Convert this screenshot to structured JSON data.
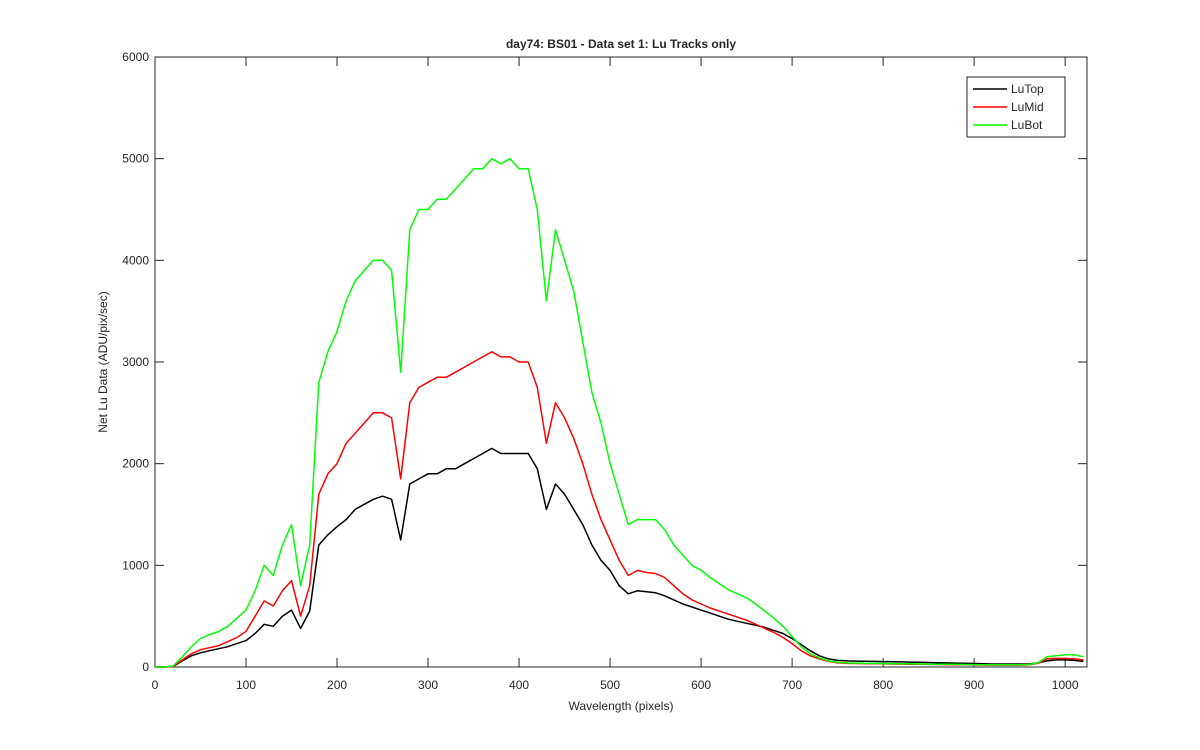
{
  "chart_data": {
    "type": "line",
    "title": "day74: BS01 - Data set 1: Lu Tracks only",
    "xlabel": "Wavelength (pixels)",
    "ylabel": "Net Lu Data (ADU/pix/sec)",
    "xlim": [
      0,
      1024
    ],
    "ylim": [
      0,
      6000
    ],
    "xticks": [
      0,
      100,
      200,
      300,
      400,
      500,
      600,
      700,
      800,
      900,
      1000
    ],
    "yticks": [
      0,
      1000,
      2000,
      3000,
      4000,
      5000,
      6000
    ],
    "legend": "northeast",
    "x": [
      0,
      10,
      20,
      30,
      40,
      50,
      60,
      70,
      80,
      90,
      100,
      110,
      120,
      130,
      140,
      150,
      160,
      170,
      180,
      190,
      200,
      210,
      220,
      230,
      240,
      250,
      260,
      270,
      280,
      290,
      300,
      310,
      320,
      330,
      340,
      350,
      360,
      370,
      380,
      390,
      400,
      410,
      420,
      430,
      440,
      450,
      460,
      470,
      480,
      490,
      500,
      510,
      520,
      530,
      540,
      550,
      560,
      570,
      580,
      590,
      600,
      610,
      620,
      630,
      640,
      650,
      660,
      670,
      680,
      690,
      700,
      710,
      720,
      730,
      740,
      750,
      760,
      770,
      780,
      790,
      800,
      810,
      820,
      830,
      840,
      850,
      860,
      870,
      880,
      890,
      900,
      910,
      920,
      930,
      940,
      950,
      960,
      970,
      980,
      990,
      1000,
      1010,
      1020
    ],
    "series": [
      {
        "name": "LuTop",
        "color": "#000000",
        "values": [
          0,
          0,
          5,
          60,
          110,
          140,
          160,
          180,
          200,
          230,
          260,
          330,
          420,
          400,
          500,
          560,
          380,
          550,
          1200,
          1300,
          1380,
          1450,
          1550,
          1600,
          1650,
          1680,
          1650,
          1250,
          1800,
          1850,
          1900,
          1900,
          1950,
          1950,
          2000,
          2050,
          2100,
          2150,
          2100,
          2100,
          2100,
          2100,
          1950,
          1550,
          1800,
          1700,
          1550,
          1400,
          1200,
          1050,
          950,
          800,
          720,
          750,
          740,
          730,
          700,
          660,
          620,
          590,
          560,
          530,
          500,
          470,
          450,
          430,
          410,
          390,
          360,
          330,
          280,
          220,
          160,
          110,
          80,
          65,
          60,
          58,
          56,
          55,
          53,
          52,
          50,
          48,
          46,
          44,
          42,
          40,
          38,
          36,
          34,
          32,
          30,
          30,
          30,
          30,
          30,
          40,
          60,
          70,
          70,
          65,
          55
        ]
      },
      {
        "name": "LuMid",
        "color": "#ff0000",
        "values": [
          0,
          0,
          5,
          70,
          130,
          170,
          190,
          210,
          250,
          290,
          350,
          500,
          650,
          600,
          750,
          850,
          500,
          800,
          1700,
          1900,
          2000,
          2200,
          2300,
          2400,
          2500,
          2500,
          2450,
          1850,
          2600,
          2750,
          2800,
          2850,
          2850,
          2900,
          2950,
          3000,
          3050,
          3100,
          3050,
          3050,
          3000,
          3000,
          2750,
          2200,
          2600,
          2450,
          2250,
          2000,
          1700,
          1450,
          1250,
          1050,
          900,
          950,
          930,
          920,
          880,
          800,
          720,
          660,
          620,
          580,
          550,
          520,
          490,
          460,
          420,
          380,
          340,
          290,
          230,
          160,
          110,
          80,
          55,
          40,
          35,
          34,
          33,
          32,
          31,
          30,
          29,
          28,
          27,
          26,
          25,
          24,
          23,
          22,
          21,
          20,
          19,
          19,
          19,
          19,
          22,
          35,
          80,
          85,
          85,
          80,
          70
        ]
      },
      {
        "name": "LuBot",
        "color": "#00ff00",
        "values": [
          0,
          0,
          10,
          100,
          200,
          280,
          320,
          350,
          400,
          480,
          560,
          750,
          1000,
          900,
          1200,
          1400,
          800,
          1200,
          2800,
          3100,
          3300,
          3600,
          3800,
          3900,
          4000,
          4000,
          3900,
          2900,
          4300,
          4500,
          4500,
          4600,
          4600,
          4700,
          4800,
          4900,
          4900,
          5000,
          4950,
          5000,
          4900,
          4900,
          4500,
          3600,
          4300,
          4000,
          3700,
          3200,
          2700,
          2400,
          2000,
          1700,
          1400,
          1450,
          1450,
          1450,
          1350,
          1200,
          1100,
          1000,
          950,
          880,
          820,
          760,
          720,
          680,
          620,
          550,
          480,
          400,
          300,
          200,
          130,
          90,
          60,
          45,
          40,
          38,
          36,
          35,
          34,
          33,
          32,
          31,
          30,
          29,
          28,
          27,
          26,
          25,
          24,
          23,
          22,
          22,
          22,
          22,
          25,
          40,
          100,
          110,
          120,
          120,
          100
        ]
      }
    ]
  }
}
